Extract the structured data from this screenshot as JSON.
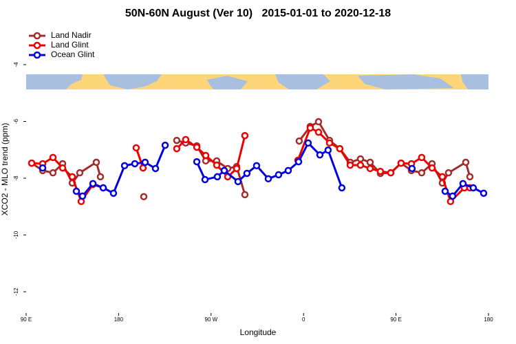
{
  "chart_data": {
    "type": "line",
    "title": "50N-60N August (Ver 10)   2015-01-01 to 2020-12-18",
    "x_label": "Longitude",
    "y_label": "XCO2 - MLO trend (ppm)",
    "xlim": [
      90,
      540
    ],
    "xticks": [
      {
        "value": 90,
        "label": "90 E"
      },
      180,
      {
        "value": 270,
        "label": "90 W"
      },
      {
        "value": 360,
        "label": "0"
      },
      {
        "value": 450,
        "label": "90 E"
      },
      {
        "value": 540,
        "label": "180"
      }
    ],
    "ylim": [
      -12.75,
      -2.62
    ],
    "yticks": [
      -4,
      -6,
      -8,
      -10,
      -12
    ],
    "legend": "top-left",
    "series": [
      {
        "name": "Land Nadir",
        "color": "#a52a2a",
        "x": [
          95.4,
          106.1,
          116.1,
          125.5,
          134.9,
          142.2,
          158.3,
          162.3,
          null,
          204.5,
          null,
          236.6,
          245.3,
          256.1,
          264.8,
          275.5,
          286.2,
          294.9,
          302.9,
          null,
          355.8,
          366.5,
          374.6,
          385.3,
          395.3,
          405.4,
          415.4,
          424.8,
          434.8,
          444.9,
          454.9,
          465.0,
          475.0,
          485.1,
          495.1,
          501.1,
          517.9,
          521.9
        ],
        "values": [
          -7.47,
          -7.73,
          -7.81,
          -7.49,
          -8.17,
          -7.81,
          -7.44,
          -7.95,
          null,
          -8.65,
          null,
          -6.67,
          -6.76,
          -6.86,
          -7.39,
          -7.39,
          -7.66,
          -7.59,
          -8.58,
          null,
          -6.69,
          -6.18,
          -6.01,
          -6.67,
          -6.96,
          -7.44,
          -7.32,
          -7.44,
          -7.83,
          -7.81,
          -7.47,
          -7.73,
          -7.81,
          -7.49,
          -8.17,
          -7.81,
          -7.44,
          -7.95
        ]
      },
      {
        "name": "Land Glint",
        "color": "#ee0000",
        "x": [
          95.4,
          106.1,
          116.1,
          125.5,
          134.9,
          143.6,
          155.0,
          165.0,
          null,
          197.1,
          203.8,
          null,
          236.6,
          245.3,
          256.1,
          264.8,
          275.5,
          286.2,
          294.9,
          302.9,
          null,
          354.5,
          366.5,
          374.6,
          385.3,
          395.3,
          405.4,
          415.4,
          424.8,
          434.8,
          444.9,
          454.9,
          465.0,
          475.0,
          485.1,
          495.1,
          503.1,
          516.5,
          521.9
        ],
        "values": [
          -7.47,
          -7.49,
          -7.27,
          -7.64,
          -7.95,
          -8.82,
          -8.22,
          -8.34,
          null,
          -6.93,
          -7.64,
          null,
          -6.96,
          -6.64,
          -6.91,
          -7.2,
          -7.54,
          -7.95,
          -7.66,
          -6.5,
          null,
          -7.37,
          -6.23,
          -6.38,
          -6.76,
          -6.96,
          -7.54,
          -7.54,
          -7.66,
          -7.76,
          -7.81,
          -7.47,
          -7.49,
          -7.27,
          -7.64,
          -7.95,
          -8.82,
          -8.34,
          -8.34
        ]
      },
      {
        "name": "Ocean Glint",
        "color": "#0000dd",
        "x": [
          106.1,
          null,
          138.9,
          144.9,
          155.0,
          165.0,
          175.0,
          185.8,
          195.8,
          205.8,
          215.9,
          225.3,
          null,
          256.1,
          264.1,
          276.1,
          282.8,
          296.2,
          304.9,
          314.3,
          325.7,
          335.7,
          345.1,
          355.2,
          364.5,
          375.9,
          383.9,
          397.3,
          null,
          465.6,
          null,
          497.8,
          505.1,
          515.2,
          525.2,
          535.3
        ],
        "values": [
          -7.64,
          null,
          -8.46,
          -8.63,
          -8.19,
          -8.34,
          -8.53,
          -7.56,
          -7.49,
          -7.44,
          -7.66,
          -6.84,
          null,
          -7.42,
          -8.05,
          -7.95,
          -7.73,
          -8.12,
          -7.83,
          -7.56,
          -8.02,
          -7.88,
          -7.73,
          -7.42,
          -6.76,
          -7.18,
          -7.01,
          -8.34,
          null,
          -7.66,
          null,
          -8.46,
          -8.63,
          -8.19,
          -8.34,
          -8.53
        ]
      }
    ]
  }
}
